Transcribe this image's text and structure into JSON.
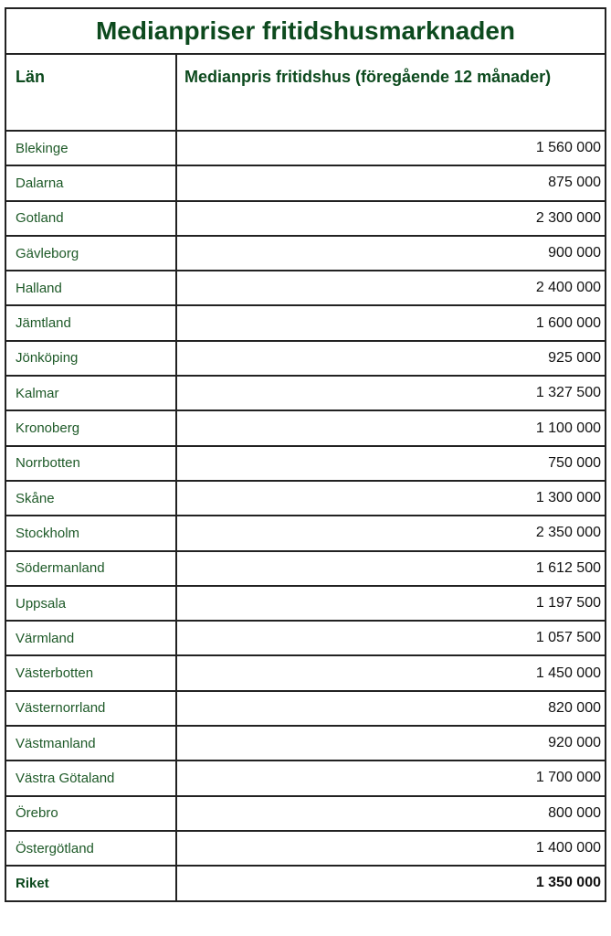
{
  "title": "Medianpriser fritidshusmarknaden",
  "headers": [
    "Län",
    "Medianpris fritidshus (föregående 12 månader)"
  ],
  "rows": [
    {
      "lan": "Blekinge",
      "price": "1 560 000"
    },
    {
      "lan": "Dalarna",
      "price": "875 000"
    },
    {
      "lan": "Gotland",
      "price": "2 300 000"
    },
    {
      "lan": "Gävleborg",
      "price": "900 000"
    },
    {
      "lan": "Halland",
      "price": "2 400 000"
    },
    {
      "lan": "Jämtland",
      "price": "1 600 000"
    },
    {
      "lan": "Jönköping",
      "price": "925 000"
    },
    {
      "lan": "Kalmar",
      "price": "1 327 500"
    },
    {
      "lan": "Kronoberg",
      "price": "1 100 000"
    },
    {
      "lan": "Norrbotten",
      "price": "750 000"
    },
    {
      "lan": "Skåne",
      "price": "1 300 000"
    },
    {
      "lan": "Stockholm",
      "price": "2 350 000"
    },
    {
      "lan": "Södermanland",
      "price": "1 612 500"
    },
    {
      "lan": "Uppsala",
      "price": "1 197 500"
    },
    {
      "lan": "Värmland",
      "price": "1 057 500"
    },
    {
      "lan": "Västerbotten",
      "price": "1 450 000"
    },
    {
      "lan": "Västernorrland",
      "price": "820 000"
    },
    {
      "lan": "Västmanland",
      "price": "920 000"
    },
    {
      "lan": "Västra Götaland",
      "price": "1 700 000"
    },
    {
      "lan": "Örebro",
      "price": "800 000"
    },
    {
      "lan": "Östergötland",
      "price": "1 400 000"
    }
  ],
  "total": {
    "lan": "Riket",
    "price": "1 350 000"
  },
  "colors": {
    "heading": "#0d4a1e",
    "name_text": "#1e5a28",
    "border": "#222222"
  }
}
